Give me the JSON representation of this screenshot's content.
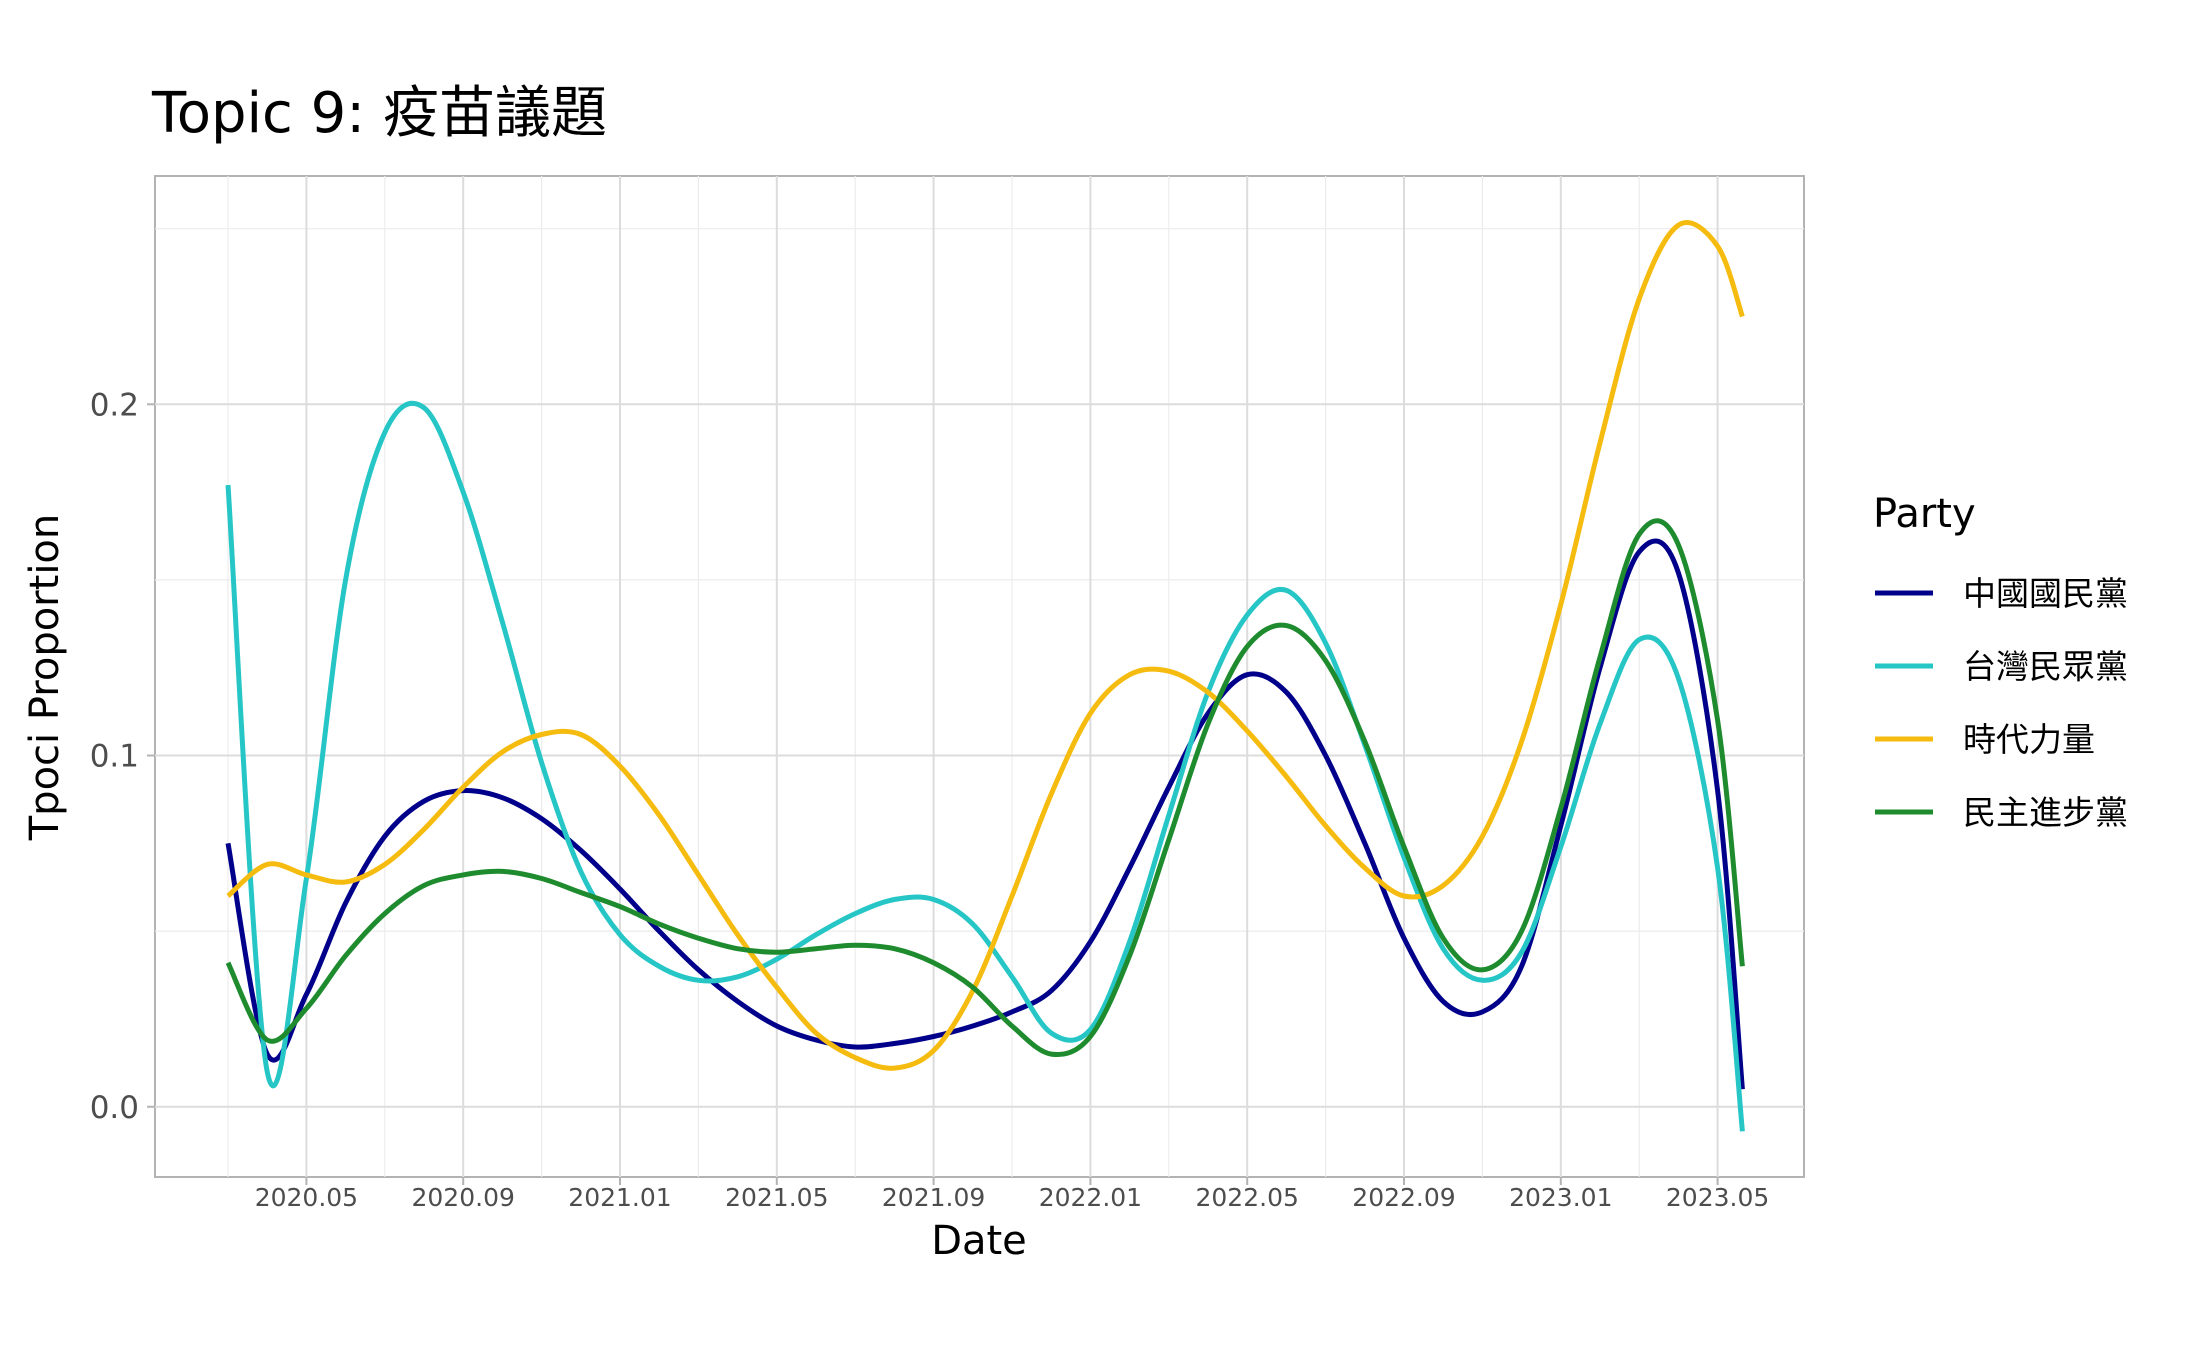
{
  "chart_data": {
    "type": "line",
    "title": "Topic 9: 疫苗議題",
    "xlabel": "Date",
    "ylabel": "Tpoci Proportion",
    "x_start": "2020-03",
    "x_end": "2023-05",
    "x_ticks": [
      {
        "date": "2020-05",
        "label": "2020.05"
      },
      {
        "date": "2020-09",
        "label": "2020.09"
      },
      {
        "date": "2021-01",
        "label": "2021.01"
      },
      {
        "date": "2021-05",
        "label": "2021.05"
      },
      {
        "date": "2021-09",
        "label": "2021.09"
      },
      {
        "date": "2022-01",
        "label": "2022.01"
      },
      {
        "date": "2022-05",
        "label": "2022.05"
      },
      {
        "date": "2022-09",
        "label": "2022.09"
      },
      {
        "date": "2023-01",
        "label": "2023.01"
      },
      {
        "date": "2023-05",
        "label": "2023.05"
      }
    ],
    "y_ticks": [
      {
        "value": 0.0,
        "label": "0.0"
      },
      {
        "value": 0.1,
        "label": "0.1"
      },
      {
        "value": 0.2,
        "label": "0.2"
      }
    ],
    "ylim": [
      -0.02,
      0.265
    ],
    "grid": true,
    "legend": {
      "title": "Party",
      "position": "right"
    },
    "series": [
      {
        "name": "中國國民黨",
        "color": "#00008B",
        "points": [
          [
            "2020-03",
            0.075
          ],
          [
            "2020-04",
            0.015
          ],
          [
            "2020-05",
            0.032
          ],
          [
            "2020-06",
            0.058
          ],
          [
            "2020-07",
            0.077
          ],
          [
            "2020-08",
            0.087
          ],
          [
            "2020-09",
            0.09
          ],
          [
            "2020-10",
            0.088
          ],
          [
            "2020-11",
            0.082
          ],
          [
            "2020-12",
            0.073
          ],
          [
            "2021-01",
            0.062
          ],
          [
            "2021-02",
            0.05
          ],
          [
            "2021-03",
            0.039
          ],
          [
            "2021-04",
            0.03
          ],
          [
            "2021-05",
            0.023
          ],
          [
            "2021-06",
            0.019
          ],
          [
            "2021-07",
            0.017
          ],
          [
            "2021-08",
            0.018
          ],
          [
            "2021-09",
            0.02
          ],
          [
            "2021-10",
            0.023
          ],
          [
            "2021-11",
            0.027
          ],
          [
            "2021-12",
            0.033
          ],
          [
            "2022-01",
            0.047
          ],
          [
            "2022-02",
            0.068
          ],
          [
            "2022-03",
            0.091
          ],
          [
            "2022-04",
            0.112
          ],
          [
            "2022-05",
            0.123
          ],
          [
            "2022-06",
            0.118
          ],
          [
            "2022-07",
            0.1
          ],
          [
            "2022-08",
            0.075
          ],
          [
            "2022-09",
            0.048
          ],
          [
            "2022-10",
            0.03
          ],
          [
            "2022-11",
            0.027
          ],
          [
            "2022-12",
            0.04
          ],
          [
            "2023-01",
            0.08
          ],
          [
            "2023-02",
            0.125
          ],
          [
            "2023-03",
            0.158
          ],
          [
            "2023-04",
            0.152
          ],
          [
            "2023-05",
            0.09
          ],
          [
            "2023-05-20",
            0.005
          ]
        ]
      },
      {
        "name": "台灣民眾黨",
        "color": "#26C6C6",
        "points": [
          [
            "2020-03",
            0.177
          ],
          [
            "2020-04",
            0.01
          ],
          [
            "2020-05",
            0.065
          ],
          [
            "2020-06",
            0.15
          ],
          [
            "2020-07",
            0.192
          ],
          [
            "2020-08",
            0.199
          ],
          [
            "2020-09",
            0.175
          ],
          [
            "2020-10",
            0.138
          ],
          [
            "2020-11",
            0.098
          ],
          [
            "2020-12",
            0.067
          ],
          [
            "2021-01",
            0.049
          ],
          [
            "2021-02",
            0.04
          ],
          [
            "2021-03",
            0.036
          ],
          [
            "2021-04",
            0.037
          ],
          [
            "2021-05",
            0.042
          ],
          [
            "2021-06",
            0.049
          ],
          [
            "2021-07",
            0.055
          ],
          [
            "2021-08",
            0.059
          ],
          [
            "2021-09",
            0.059
          ],
          [
            "2021-10",
            0.052
          ],
          [
            "2021-11",
            0.037
          ],
          [
            "2021-12",
            0.021
          ],
          [
            "2022-01",
            0.022
          ],
          [
            "2022-02",
            0.047
          ],
          [
            "2022-03",
            0.083
          ],
          [
            "2022-04",
            0.118
          ],
          [
            "2022-05",
            0.14
          ],
          [
            "2022-06",
            0.147
          ],
          [
            "2022-07",
            0.132
          ],
          [
            "2022-08",
            0.103
          ],
          [
            "2022-09",
            0.071
          ],
          [
            "2022-10",
            0.045
          ],
          [
            "2022-11",
            0.036
          ],
          [
            "2022-12",
            0.044
          ],
          [
            "2023-01",
            0.074
          ],
          [
            "2023-02",
            0.109
          ],
          [
            "2023-03",
            0.133
          ],
          [
            "2023-04",
            0.122
          ],
          [
            "2023-05",
            0.068
          ],
          [
            "2023-05-20",
            -0.007
          ]
        ]
      },
      {
        "name": "時代力量",
        "color": "#F5BC0F",
        "points": [
          [
            "2020-03",
            0.06
          ],
          [
            "2020-04",
            0.069
          ],
          [
            "2020-05",
            0.066
          ],
          [
            "2020-06",
            0.064
          ],
          [
            "2020-07",
            0.069
          ],
          [
            "2020-08",
            0.079
          ],
          [
            "2020-09",
            0.091
          ],
          [
            "2020-10",
            0.101
          ],
          [
            "2020-11",
            0.106
          ],
          [
            "2020-12",
            0.106
          ],
          [
            "2021-01",
            0.097
          ],
          [
            "2021-02",
            0.083
          ],
          [
            "2021-03",
            0.066
          ],
          [
            "2021-04",
            0.049
          ],
          [
            "2021-05",
            0.034
          ],
          [
            "2021-06",
            0.021
          ],
          [
            "2021-07",
            0.014
          ],
          [
            "2021-08",
            0.011
          ],
          [
            "2021-09",
            0.016
          ],
          [
            "2021-10",
            0.033
          ],
          [
            "2021-11",
            0.06
          ],
          [
            "2021-12",
            0.089
          ],
          [
            "2022-01",
            0.112
          ],
          [
            "2022-02",
            0.123
          ],
          [
            "2022-03",
            0.124
          ],
          [
            "2022-04",
            0.118
          ],
          [
            "2022-05",
            0.107
          ],
          [
            "2022-06",
            0.094
          ],
          [
            "2022-07",
            0.08
          ],
          [
            "2022-08",
            0.068
          ],
          [
            "2022-09",
            0.06
          ],
          [
            "2022-10",
            0.063
          ],
          [
            "2022-11",
            0.077
          ],
          [
            "2022-12",
            0.104
          ],
          [
            "2023-01",
            0.143
          ],
          [
            "2023-02",
            0.189
          ],
          [
            "2023-03",
            0.23
          ],
          [
            "2023-04",
            0.251
          ],
          [
            "2023-05",
            0.245
          ],
          [
            "2023-05-20",
            0.225
          ]
        ]
      },
      {
        "name": "民主進步黨",
        "color": "#1E8C2E",
        "points": [
          [
            "2020-03",
            0.041
          ],
          [
            "2020-04",
            0.019
          ],
          [
            "2020-05",
            0.028
          ],
          [
            "2020-06",
            0.043
          ],
          [
            "2020-07",
            0.055
          ],
          [
            "2020-08",
            0.063
          ],
          [
            "2020-09",
            0.066
          ],
          [
            "2020-10",
            0.067
          ],
          [
            "2020-11",
            0.065
          ],
          [
            "2020-12",
            0.061
          ],
          [
            "2021-01",
            0.057
          ],
          [
            "2021-02",
            0.052
          ],
          [
            "2021-03",
            0.048
          ],
          [
            "2021-04",
            0.045
          ],
          [
            "2021-05",
            0.044
          ],
          [
            "2021-06",
            0.045
          ],
          [
            "2021-07",
            0.046
          ],
          [
            "2021-08",
            0.045
          ],
          [
            "2021-09",
            0.041
          ],
          [
            "2021-10",
            0.034
          ],
          [
            "2021-11",
            0.023
          ],
          [
            "2021-12",
            0.015
          ],
          [
            "2022-01",
            0.02
          ],
          [
            "2022-02",
            0.043
          ],
          [
            "2022-03",
            0.076
          ],
          [
            "2022-04",
            0.109
          ],
          [
            "2022-05",
            0.131
          ],
          [
            "2022-06",
            0.137
          ],
          [
            "2022-07",
            0.127
          ],
          [
            "2022-08",
            0.104
          ],
          [
            "2022-09",
            0.074
          ],
          [
            "2022-10",
            0.048
          ],
          [
            "2022-11",
            0.039
          ],
          [
            "2022-12",
            0.05
          ],
          [
            "2023-01",
            0.085
          ],
          [
            "2023-02",
            0.128
          ],
          [
            "2023-03",
            0.163
          ],
          [
            "2023-04",
            0.16
          ],
          [
            "2023-05",
            0.11
          ],
          [
            "2023-05-20",
            0.04
          ]
        ]
      }
    ]
  }
}
